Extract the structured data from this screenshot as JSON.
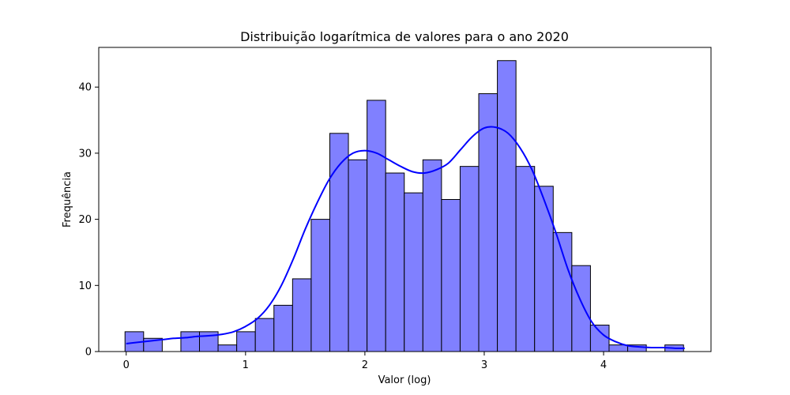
{
  "chart_data": {
    "type": "histogram",
    "title": "Distribuição logarítmica de valores para o ano 2020",
    "xlabel": "Valor (log)",
    "ylabel": "Frequência",
    "xlim": [
      -0.23,
      4.9
    ],
    "ylim": [
      0,
      46
    ],
    "x_ticks": [
      0,
      1,
      2,
      3,
      4
    ],
    "y_ticks": [
      0,
      10,
      20,
      30,
      40
    ],
    "grid": false,
    "bar_fill": "#8080ff",
    "bar_edge": "#000000",
    "kde_color": "#0000ff",
    "bin_width": 0.156,
    "bin_start": -0.01,
    "counts": [
      3,
      2,
      0,
      3,
      3,
      1,
      3,
      5,
      7,
      11,
      20,
      33,
      29,
      38,
      27,
      24,
      29,
      23,
      28,
      39,
      44,
      28,
      25,
      18,
      13,
      4,
      1,
      1,
      0,
      1
    ],
    "kde": {
      "x": [
        0,
        0.1,
        0.2,
        0.3,
        0.4,
        0.5,
        0.6,
        0.7,
        0.8,
        0.9,
        1.0,
        1.1,
        1.2,
        1.3,
        1.4,
        1.5,
        1.6,
        1.7,
        1.8,
        1.9,
        2.0,
        2.1,
        2.2,
        2.3,
        2.4,
        2.5,
        2.6,
        2.7,
        2.8,
        2.9,
        3.0,
        3.1,
        3.2,
        3.3,
        3.4,
        3.5,
        3.6,
        3.7,
        3.8,
        3.9,
        4.0,
        4.1,
        4.2,
        4.3,
        4.4,
        4.5,
        4.6,
        4.68
      ],
      "y": [
        1.2,
        1.4,
        1.6,
        1.8,
        2.0,
        2.1,
        2.3,
        2.4,
        2.6,
        3.0,
        3.8,
        5.0,
        7.0,
        10.0,
        14.0,
        18.5,
        22.5,
        26.0,
        28.5,
        30.0,
        30.4,
        30.0,
        29.0,
        28.0,
        27.2,
        27.0,
        27.5,
        28.5,
        30.5,
        32.5,
        33.8,
        33.9,
        33.0,
        30.8,
        27.5,
        23.0,
        18.0,
        12.5,
        8.0,
        4.5,
        2.5,
        1.5,
        0.9,
        0.7,
        0.6,
        0.6,
        0.5,
        0.5
      ]
    }
  }
}
